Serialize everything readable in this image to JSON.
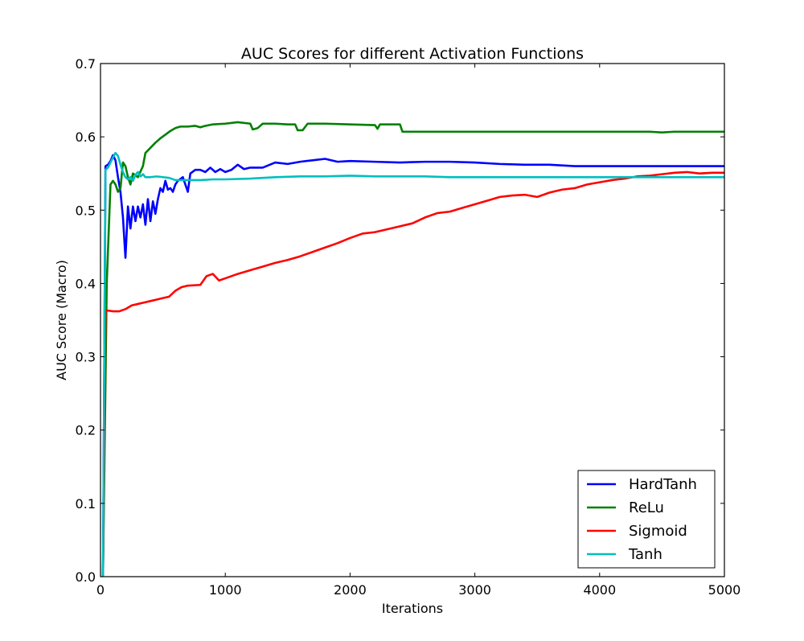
{
  "chart_data": {
    "type": "line",
    "title": "AUC Scores for different Activation Functions",
    "xlabel": "Iterations",
    "ylabel": "AUC Score (Macro)",
    "xlim": [
      0,
      5000
    ],
    "ylim": [
      0,
      0.7
    ],
    "xticks": [
      0,
      1000,
      2000,
      3000,
      4000,
      5000
    ],
    "yticks": [
      0.0,
      0.1,
      0.2,
      0.3,
      0.4,
      0.5,
      0.6,
      0.7
    ],
    "xtick_labels": [
      "0",
      "1000",
      "2000",
      "3000",
      "4000",
      "5000"
    ],
    "ytick_labels": [
      "0.0",
      "0.1",
      "0.2",
      "0.3",
      "0.4",
      "0.5",
      "0.6",
      "0.7"
    ],
    "grid": false,
    "legend_position": "bottom-right",
    "series": [
      {
        "name": "HardTanh",
        "color": "#0000ff",
        "points": [
          [
            20,
            0.0
          ],
          [
            40,
            0.56
          ],
          [
            60,
            0.562
          ],
          [
            80,
            0.567
          ],
          [
            100,
            0.575
          ],
          [
            120,
            0.568
          ],
          [
            140,
            0.545
          ],
          [
            160,
            0.525
          ],
          [
            180,
            0.49
          ],
          [
            200,
            0.435
          ],
          [
            220,
            0.505
          ],
          [
            240,
            0.475
          ],
          [
            260,
            0.505
          ],
          [
            280,
            0.485
          ],
          [
            300,
            0.505
          ],
          [
            320,
            0.49
          ],
          [
            340,
            0.508
          ],
          [
            360,
            0.48
          ],
          [
            380,
            0.515
          ],
          [
            400,
            0.485
          ],
          [
            420,
            0.512
          ],
          [
            440,
            0.495
          ],
          [
            460,
            0.515
          ],
          [
            480,
            0.53
          ],
          [
            500,
            0.525
          ],
          [
            520,
            0.54
          ],
          [
            540,
            0.528
          ],
          [
            560,
            0.53
          ],
          [
            580,
            0.525
          ],
          [
            600,
            0.535
          ],
          [
            620,
            0.54
          ],
          [
            660,
            0.545
          ],
          [
            700,
            0.525
          ],
          [
            720,
            0.55
          ],
          [
            760,
            0.555
          ],
          [
            800,
            0.555
          ],
          [
            840,
            0.552
          ],
          [
            880,
            0.558
          ],
          [
            920,
            0.552
          ],
          [
            960,
            0.556
          ],
          [
            1000,
            0.552
          ],
          [
            1050,
            0.555
          ],
          [
            1100,
            0.562
          ],
          [
            1150,
            0.556
          ],
          [
            1200,
            0.558
          ],
          [
            1300,
            0.558
          ],
          [
            1400,
            0.565
          ],
          [
            1500,
            0.563
          ],
          [
            1600,
            0.566
          ],
          [
            1700,
            0.568
          ],
          [
            1800,
            0.57
          ],
          [
            1900,
            0.566
          ],
          [
            2000,
            0.567
          ],
          [
            2200,
            0.566
          ],
          [
            2400,
            0.565
          ],
          [
            2600,
            0.566
          ],
          [
            2800,
            0.566
          ],
          [
            3000,
            0.565
          ],
          [
            3200,
            0.563
          ],
          [
            3400,
            0.562
          ],
          [
            3600,
            0.562
          ],
          [
            3800,
            0.56
          ],
          [
            4000,
            0.56
          ],
          [
            4200,
            0.56
          ],
          [
            4400,
            0.56
          ],
          [
            4600,
            0.56
          ],
          [
            4800,
            0.56
          ],
          [
            5000,
            0.56
          ]
        ]
      },
      {
        "name": "ReLu",
        "color": "#008000",
        "points": [
          [
            20,
            0.0
          ],
          [
            50,
            0.4
          ],
          [
            80,
            0.535
          ],
          [
            100,
            0.54
          ],
          [
            120,
            0.535
          ],
          [
            140,
            0.525
          ],
          [
            160,
            0.53
          ],
          [
            180,
            0.565
          ],
          [
            200,
            0.56
          ],
          [
            220,
            0.545
          ],
          [
            240,
            0.535
          ],
          [
            260,
            0.55
          ],
          [
            300,
            0.545
          ],
          [
            340,
            0.56
          ],
          [
            360,
            0.578
          ],
          [
            400,
            0.585
          ],
          [
            440,
            0.592
          ],
          [
            480,
            0.598
          ],
          [
            520,
            0.603
          ],
          [
            560,
            0.608
          ],
          [
            600,
            0.612
          ],
          [
            640,
            0.614
          ],
          [
            700,
            0.614
          ],
          [
            760,
            0.615
          ],
          [
            800,
            0.613
          ],
          [
            840,
            0.615
          ],
          [
            900,
            0.617
          ],
          [
            1000,
            0.618
          ],
          [
            1100,
            0.62
          ],
          [
            1200,
            0.618
          ],
          [
            1220,
            0.61
          ],
          [
            1260,
            0.612
          ],
          [
            1300,
            0.618
          ],
          [
            1400,
            0.618
          ],
          [
            1500,
            0.617
          ],
          [
            1560,
            0.617
          ],
          [
            1580,
            0.609
          ],
          [
            1620,
            0.609
          ],
          [
            1660,
            0.618
          ],
          [
            1800,
            0.618
          ],
          [
            2000,
            0.617
          ],
          [
            2200,
            0.616
          ],
          [
            2220,
            0.611
          ],
          [
            2240,
            0.617
          ],
          [
            2400,
            0.617
          ],
          [
            2420,
            0.607
          ],
          [
            2600,
            0.607
          ],
          [
            3000,
            0.607
          ],
          [
            3600,
            0.607
          ],
          [
            4000,
            0.607
          ],
          [
            4400,
            0.607
          ],
          [
            4500,
            0.606
          ],
          [
            4600,
            0.607
          ],
          [
            5000,
            0.607
          ]
        ]
      },
      {
        "name": "Sigmoid",
        "color": "#ff0000",
        "points": [
          [
            20,
            0.0
          ],
          [
            40,
            0.362
          ],
          [
            60,
            0.363
          ],
          [
            100,
            0.362
          ],
          [
            150,
            0.362
          ],
          [
            200,
            0.365
          ],
          [
            250,
            0.37
          ],
          [
            300,
            0.372
          ],
          [
            350,
            0.374
          ],
          [
            400,
            0.376
          ],
          [
            450,
            0.378
          ],
          [
            500,
            0.38
          ],
          [
            550,
            0.382
          ],
          [
            600,
            0.39
          ],
          [
            650,
            0.395
          ],
          [
            700,
            0.397
          ],
          [
            800,
            0.398
          ],
          [
            850,
            0.41
          ],
          [
            900,
            0.413
          ],
          [
            950,
            0.404
          ],
          [
            1000,
            0.407
          ],
          [
            1100,
            0.413
          ],
          [
            1200,
            0.418
          ],
          [
            1300,
            0.423
          ],
          [
            1400,
            0.428
          ],
          [
            1500,
            0.432
          ],
          [
            1600,
            0.437
          ],
          [
            1700,
            0.443
          ],
          [
            1800,
            0.449
          ],
          [
            1900,
            0.455
          ],
          [
            2000,
            0.462
          ],
          [
            2100,
            0.468
          ],
          [
            2200,
            0.47
          ],
          [
            2300,
            0.474
          ],
          [
            2400,
            0.478
          ],
          [
            2500,
            0.482
          ],
          [
            2600,
            0.49
          ],
          [
            2700,
            0.496
          ],
          [
            2800,
            0.498
          ],
          [
            2900,
            0.503
          ],
          [
            3000,
            0.508
          ],
          [
            3100,
            0.513
          ],
          [
            3200,
            0.518
          ],
          [
            3300,
            0.52
          ],
          [
            3400,
            0.521
          ],
          [
            3500,
            0.518
          ],
          [
            3600,
            0.524
          ],
          [
            3700,
            0.528
          ],
          [
            3800,
            0.53
          ],
          [
            3900,
            0.535
          ],
          [
            4000,
            0.538
          ],
          [
            4100,
            0.541
          ],
          [
            4200,
            0.543
          ],
          [
            4300,
            0.546
          ],
          [
            4400,
            0.547
          ],
          [
            4500,
            0.549
          ],
          [
            4600,
            0.551
          ],
          [
            4700,
            0.552
          ],
          [
            4800,
            0.55
          ],
          [
            4900,
            0.551
          ],
          [
            5000,
            0.551
          ]
        ]
      },
      {
        "name": "Tanh",
        "color": "#00bfbf",
        "points": [
          [
            20,
            0.0
          ],
          [
            40,
            0.555
          ],
          [
            60,
            0.558
          ],
          [
            80,
            0.565
          ],
          [
            100,
            0.572
          ],
          [
            120,
            0.578
          ],
          [
            140,
            0.574
          ],
          [
            160,
            0.562
          ],
          [
            180,
            0.552
          ],
          [
            200,
            0.545
          ],
          [
            220,
            0.542
          ],
          [
            240,
            0.545
          ],
          [
            260,
            0.54
          ],
          [
            280,
            0.548
          ],
          [
            300,
            0.552
          ],
          [
            320,
            0.546
          ],
          [
            340,
            0.549
          ],
          [
            360,
            0.545
          ],
          [
            400,
            0.545
          ],
          [
            450,
            0.546
          ],
          [
            500,
            0.545
          ],
          [
            550,
            0.544
          ],
          [
            600,
            0.541
          ],
          [
            700,
            0.541
          ],
          [
            800,
            0.541
          ],
          [
            900,
            0.542
          ],
          [
            1000,
            0.542
          ],
          [
            1200,
            0.543
          ],
          [
            1400,
            0.545
          ],
          [
            1600,
            0.546
          ],
          [
            1800,
            0.546
          ],
          [
            2000,
            0.547
          ],
          [
            2200,
            0.546
          ],
          [
            2400,
            0.546
          ],
          [
            2600,
            0.546
          ],
          [
            2800,
            0.545
          ],
          [
            3000,
            0.545
          ],
          [
            3200,
            0.545
          ],
          [
            3400,
            0.545
          ],
          [
            3600,
            0.545
          ],
          [
            3800,
            0.545
          ],
          [
            4000,
            0.545
          ],
          [
            4200,
            0.545
          ],
          [
            4400,
            0.545
          ],
          [
            4600,
            0.545
          ],
          [
            4800,
            0.545
          ],
          [
            5000,
            0.545
          ]
        ]
      }
    ]
  }
}
